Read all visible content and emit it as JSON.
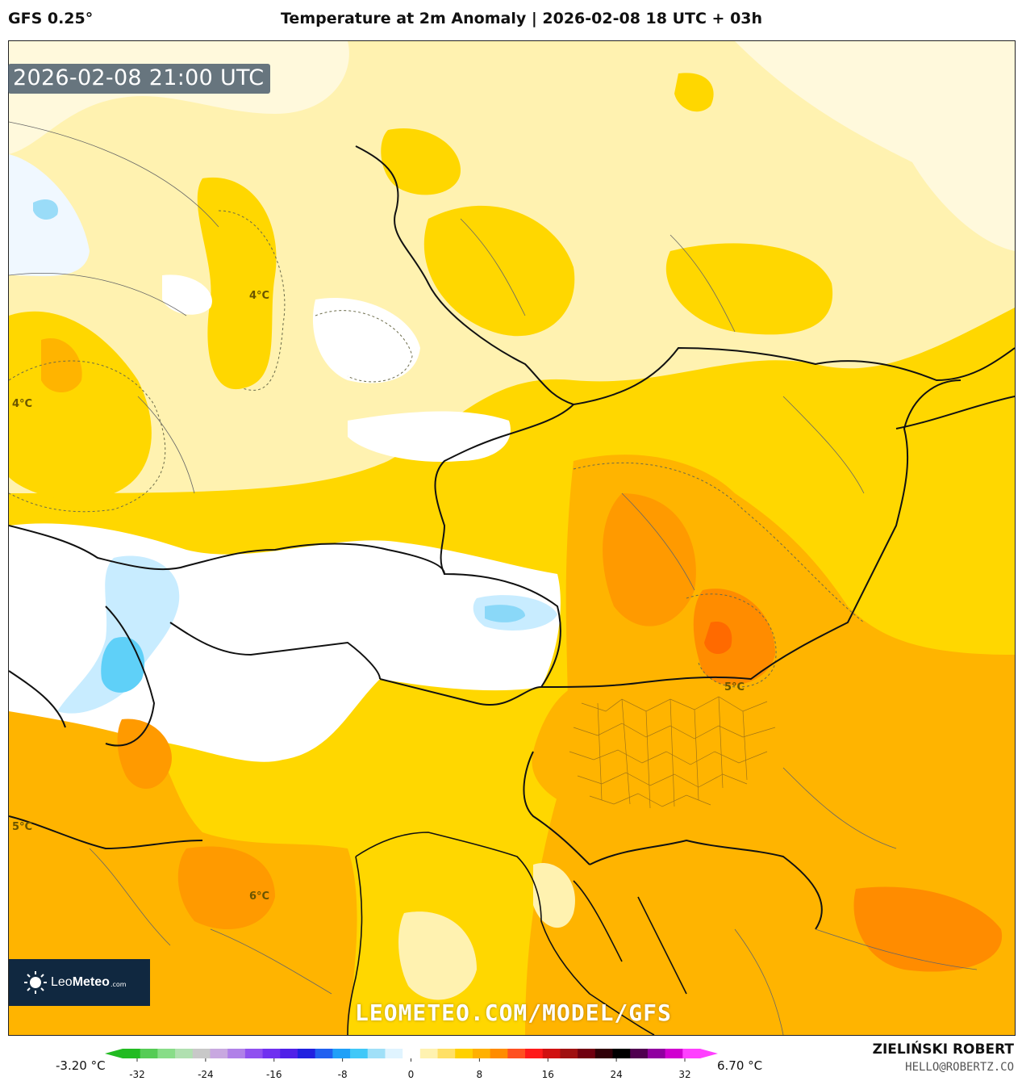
{
  "header": {
    "model": "GFS 0.25°",
    "title": "Temperature at 2m Anomaly | 2026-02-08 18 UTC + 03h"
  },
  "map": {
    "valid_time": "2026-02-08 21:00 UTC",
    "contour_labels": [
      "4°C",
      "4°C",
      "5°C",
      "5°C",
      "6°C"
    ]
  },
  "branding": {
    "logo_name_light": "Leo",
    "logo_name_bold": "Meteo",
    "logo_suffix": ".com",
    "watermark": "LEOMETEO.COM/MODEL/GFS",
    "author": "ZIELIŃSKI ROBERT",
    "email": "HELLO@ROBERTZ.CO"
  },
  "colorbar": {
    "min_label": "-3.20 °C",
    "max_label": "6.70 °C",
    "ticks": [
      "-32",
      "-24",
      "-16",
      "-8",
      "0",
      "8",
      "16",
      "24",
      "32"
    ],
    "colors": [
      "#22bb22",
      "#55cc55",
      "#88dd88",
      "#b0e0b0",
      "#c8c8c8",
      "#c8a8e0",
      "#b080e8",
      "#9050f0",
      "#7030f0",
      "#5020e8",
      "#2020e0",
      "#2060f0",
      "#20a0f8",
      "#40c8f8",
      "#a0e0f8",
      "#e0f4ff",
      "#ffffff",
      "#fff2b0",
      "#ffe066",
      "#ffd000",
      "#ffb000",
      "#ff8c00",
      "#ff5020",
      "#ff1a1a",
      "#d01010",
      "#a01010",
      "#700010",
      "#300008",
      "#000000",
      "#500050",
      "#9000a0",
      "#d000d0",
      "#ff40ff"
    ]
  }
}
